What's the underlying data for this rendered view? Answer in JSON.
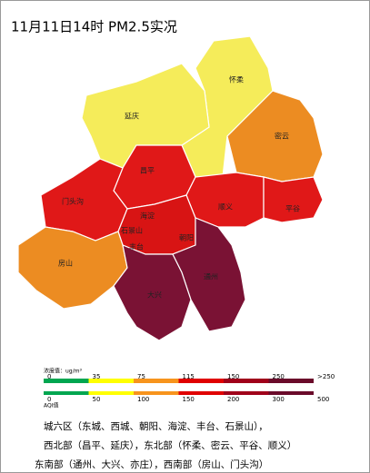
{
  "header": {
    "title": "11月11日14时 PM2.5实况"
  },
  "districts": [
    "怀柔",
    "延庆",
    "密云",
    "昌平",
    "门头沟",
    "顺义",
    "平谷",
    "海淀",
    "朝阳",
    "丰台",
    "石景山",
    "房山",
    "大兴",
    "通州"
  ],
  "legend": {
    "colors": [
      "#00a650",
      "#ffff00",
      "#f7941d",
      "#e00000",
      "#a0001a",
      "#6a0a2a"
    ],
    "concentration_label": "浓度值：ug/m³",
    "concentration_ticks": [
      0,
      35,
      75,
      115,
      150,
      250,
      ">250"
    ],
    "aqi_label": "AQI值",
    "aqi_ticks": [
      0,
      50,
      100,
      150,
      200,
      300,
      500
    ]
  },
  "notes": [
    "城六区（东城、西城、朝阳、海淀、丰台、石景山），",
    "西北部（昌平、延庆），东北部（怀柔、密云、平谷、顺义）",
    "东南部（通州、大兴、亦庄），西南部（房山、门头沟）"
  ]
}
